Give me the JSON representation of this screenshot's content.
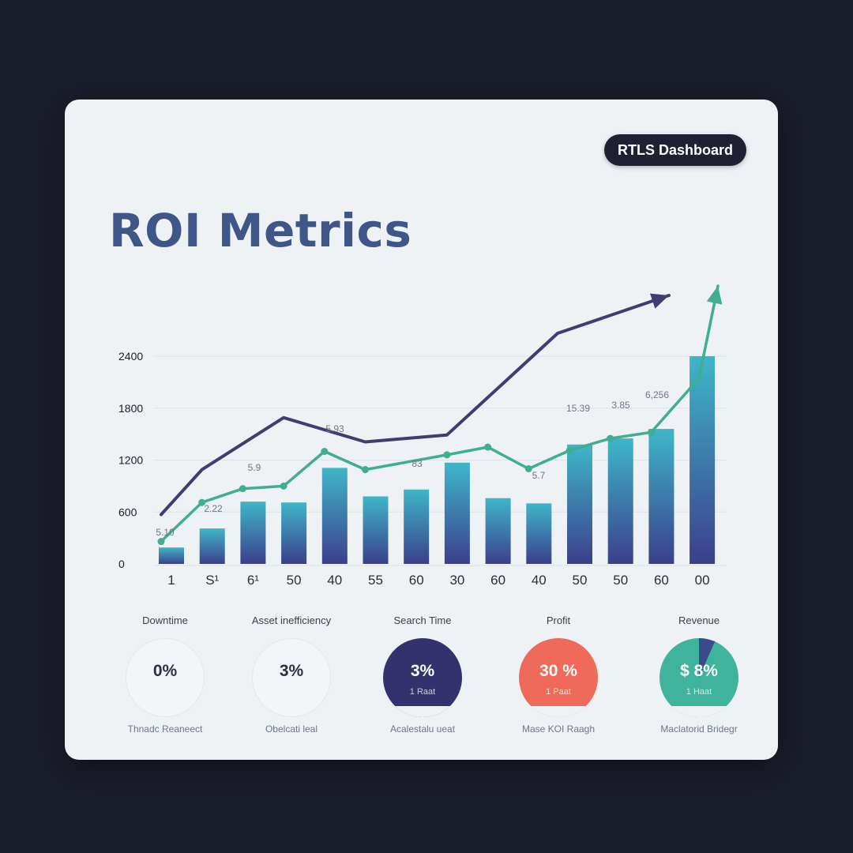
{
  "header": {
    "badge_label": "RTLS Dashboard",
    "title": "ROI Metrics"
  },
  "colors": {
    "page_background": "#1b1e2b",
    "card": "#eef2f4",
    "title": "#3e5688",
    "bar_top": "#3fb6c8",
    "bar_bottom": "#3b3f8c",
    "dark_trend_line": "#3f3d72",
    "green_trend_line": "#3fae93"
  },
  "chart_data": {
    "type": "bar",
    "y_ticks": [
      "2400",
      "1800",
      "1200",
      "600",
      "0"
    ],
    "ylim": [
      0,
      2400
    ],
    "grid": true,
    "categories": [
      "1",
      "S¹",
      "6¹",
      "50",
      "40",
      "55",
      "60",
      "30",
      "60",
      "40",
      "50",
      "50",
      "60",
      "00"
    ],
    "series": [
      {
        "values": [
          190,
          410,
          720,
          710,
          1110,
          780,
          860,
          1170,
          760,
          700,
          1380,
          1450,
          1560,
          2400
        ]
      }
    ],
    "lines": [
      {
        "color": "dark",
        "values": [
          570,
          1090,
          null,
          1690,
          null,
          1410,
          null,
          1490,
          null,
          null,
          null,
          null,
          null,
          null
        ],
        "end_arrow": true
      },
      {
        "color": "green",
        "values": [
          260,
          710,
          870,
          900,
          1300,
          1090,
          null,
          1260,
          1350,
          1100,
          1310,
          1450,
          1520,
          null
        ],
        "end_arrow": true
      }
    ],
    "data_labels": [
      "5.10",
      "2.22",
      "5.9",
      "5.93",
      "83",
      "5.7",
      "15.39",
      "3.85",
      "6,256"
    ]
  },
  "metrics": [
    {
      "label": "Downtime",
      "value": "0%",
      "sub": "",
      "caption": "Thnadc Reaneect",
      "style": "outline",
      "fill": "#f3f6f8",
      "text_color": "#2c2f3d"
    },
    {
      "label": "Asset inefficiency",
      "value": "3%",
      "sub": "",
      "caption": "Obelcati leal",
      "style": "outline",
      "fill": "#f3f6f8",
      "text_color": "#2c2f3d"
    },
    {
      "label": "Search Time",
      "value": "3%",
      "sub": "1 Raat",
      "caption": "Acalestalu ueat",
      "style": "filled",
      "fill": "#33326e",
      "text_color": "#ffffff"
    },
    {
      "label": "Profit",
      "value": "30 %",
      "sub": "1 Paat",
      "caption": "Mase KOI Raagh",
      "style": "filled",
      "fill": "#ef6a5a",
      "text_color": "#ffffff"
    },
    {
      "label": "Revenue",
      "value": "$ 8%",
      "sub": "1 Haat",
      "caption": "Maclatorid Bridegr",
      "style": "filled",
      "fill": "#3fb39c",
      "text_color": "#ffffff",
      "slice_color": "#3b4a8a"
    }
  ]
}
